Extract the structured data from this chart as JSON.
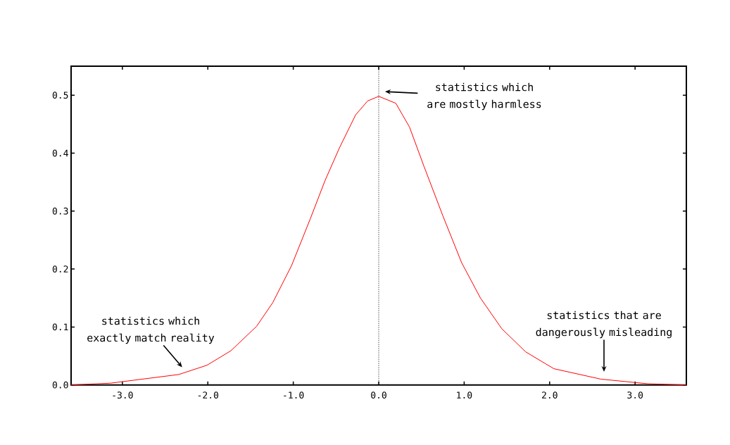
{
  "chart_data": {
    "type": "line",
    "color": "#ff0000",
    "x": [
      -3.6,
      -3.14,
      -2.34,
      -2.01,
      -1.73,
      -1.43,
      -1.24,
      -1.02,
      -0.8,
      -0.63,
      -0.46,
      -0.27,
      -0.13,
      0,
      0.2,
      0.36,
      0.53,
      0.75,
      0.97,
      1.19,
      1.44,
      1.72,
      2.05,
      2.6,
      3.15,
      3.6
    ],
    "values": [
      0,
      0.003,
      0.018,
      0.034,
      0.059,
      0.101,
      0.142,
      0.206,
      0.287,
      0.352,
      0.409,
      0.466,
      0.49,
      0.498,
      0.486,
      0.445,
      0.377,
      0.292,
      0.211,
      0.15,
      0.097,
      0.057,
      0.028,
      0.01,
      0.002,
      0
    ],
    "xlim": [
      -3.6,
      3.6
    ],
    "ylim": [
      0,
      0.55
    ],
    "xticks": [
      {
        "value": -3,
        "label": "-3.0"
      },
      {
        "value": -2,
        "label": "-2.0"
      },
      {
        "value": -1,
        "label": "-1.0"
      },
      {
        "value": 0,
        "label": "0.0"
      },
      {
        "value": 1,
        "label": "1.0"
      },
      {
        "value": 2,
        "label": "2.0"
      },
      {
        "value": 3,
        "label": "3.0"
      }
    ],
    "yticks": [
      {
        "value": 0,
        "label": "0.0"
      },
      {
        "value": 0.1,
        "label": "0.1"
      },
      {
        "value": 0.2,
        "label": "0.2"
      },
      {
        "value": 0.3,
        "label": "0.3"
      },
      {
        "value": 0.4,
        "label": "0.4"
      },
      {
        "value": 0.5,
        "label": "0.5"
      }
    ],
    "ref_lines": [
      {
        "axis": "x",
        "value": 0,
        "color": "#000000",
        "line_style": "dotted"
      }
    ],
    "annotations": [
      "statistics which are mostly harmless",
      "statistics which exactly match reality",
      "statistics that are dangerously misleading"
    ],
    "marker": "none",
    "line_style": "solid"
  }
}
